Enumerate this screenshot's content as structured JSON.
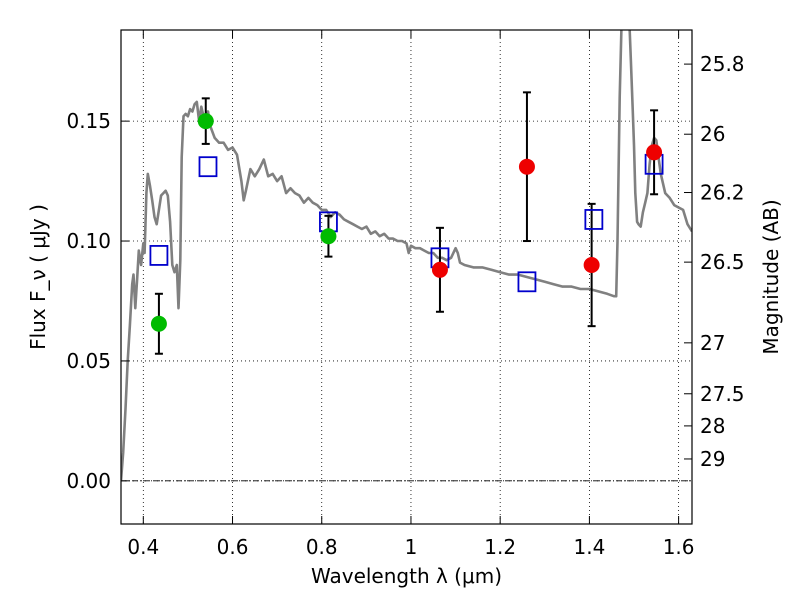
{
  "chart_data": {
    "type": "scatter",
    "xlabel": "Wavelength  λ (μm)",
    "ylabel": "Flux  F_ν  ( μJy )",
    "ylabel_right": "Magnitude (AB)",
    "xlim": [
      0.35,
      1.63
    ],
    "ylim": [
      -0.018,
      0.188
    ],
    "grid": true,
    "x_ticks": [
      0.4,
      0.6,
      0.8,
      1.0,
      1.2,
      1.4,
      1.6
    ],
    "x_tick_labels": [
      "0.4",
      "0.6",
      "0.8",
      "1",
      "1.2",
      "1.4",
      "1.6"
    ],
    "y_ticks": [
      0.0,
      0.05,
      0.1,
      0.15
    ],
    "y_tick_labels": [
      "0.00",
      "0.05",
      "0.10",
      "0.15"
    ],
    "mag_ticks": [
      {
        "mag": 25.8,
        "label": "25.8"
      },
      {
        "mag": 26.0,
        "label": "26"
      },
      {
        "mag": 26.2,
        "label": "26.2"
      },
      {
        "mag": 26.5,
        "label": "26.5"
      },
      {
        "mag": 27.0,
        "label": "27"
      },
      {
        "mag": 27.5,
        "label": "27.5"
      },
      {
        "mag": 28.0,
        "label": "28"
      },
      {
        "mag": 29.0,
        "label": "29"
      }
    ],
    "model_color": "#808080",
    "model_sed": [
      [
        0.35,
        0.0
      ],
      [
        0.355,
        0.012
      ],
      [
        0.36,
        0.03
      ],
      [
        0.365,
        0.05
      ],
      [
        0.37,
        0.065
      ],
      [
        0.375,
        0.082
      ],
      [
        0.378,
        0.086
      ],
      [
        0.382,
        0.072
      ],
      [
        0.386,
        0.084
      ],
      [
        0.39,
        0.096
      ],
      [
        0.395,
        0.09
      ],
      [
        0.4,
        0.099
      ],
      [
        0.403,
        0.095
      ],
      [
        0.407,
        0.12
      ],
      [
        0.41,
        0.128
      ],
      [
        0.415,
        0.123
      ],
      [
        0.42,
        0.117
      ],
      [
        0.425,
        0.11
      ],
      [
        0.43,
        0.107
      ],
      [
        0.435,
        0.113
      ],
      [
        0.44,
        0.119
      ],
      [
        0.445,
        0.12
      ],
      [
        0.45,
        0.121
      ],
      [
        0.455,
        0.119
      ],
      [
        0.46,
        0.108
      ],
      [
        0.465,
        0.09
      ],
      [
        0.47,
        0.087
      ],
      [
        0.475,
        0.09
      ],
      [
        0.479,
        0.072
      ],
      [
        0.483,
        0.092
      ],
      [
        0.486,
        0.135
      ],
      [
        0.49,
        0.152
      ],
      [
        0.495,
        0.153
      ],
      [
        0.5,
        0.152
      ],
      [
        0.505,
        0.155
      ],
      [
        0.51,
        0.154
      ],
      [
        0.515,
        0.157
      ],
      [
        0.52,
        0.158
      ],
      [
        0.525,
        0.15
      ],
      [
        0.53,
        0.156
      ],
      [
        0.535,
        0.152
      ],
      [
        0.54,
        0.15
      ],
      [
        0.545,
        0.154
      ],
      [
        0.55,
        0.148
      ],
      [
        0.56,
        0.143
      ],
      [
        0.57,
        0.141
      ],
      [
        0.58,
        0.141
      ],
      [
        0.59,
        0.138
      ],
      [
        0.6,
        0.139
      ],
      [
        0.61,
        0.136
      ],
      [
        0.62,
        0.125
      ],
      [
        0.625,
        0.117
      ],
      [
        0.63,
        0.121
      ],
      [
        0.64,
        0.13
      ],
      [
        0.65,
        0.127
      ],
      [
        0.66,
        0.13
      ],
      [
        0.67,
        0.134
      ],
      [
        0.68,
        0.127
      ],
      [
        0.69,
        0.128
      ],
      [
        0.7,
        0.125
      ],
      [
        0.71,
        0.127
      ],
      [
        0.72,
        0.12
      ],
      [
        0.73,
        0.122
      ],
      [
        0.74,
        0.12
      ],
      [
        0.75,
        0.119
      ],
      [
        0.76,
        0.116
      ],
      [
        0.77,
        0.118
      ],
      [
        0.78,
        0.116
      ],
      [
        0.79,
        0.115
      ],
      [
        0.8,
        0.113
      ],
      [
        0.81,
        0.113
      ],
      [
        0.82,
        0.11
      ],
      [
        0.83,
        0.112
      ],
      [
        0.84,
        0.111
      ],
      [
        0.85,
        0.109
      ],
      [
        0.86,
        0.108
      ],
      [
        0.87,
        0.107
      ],
      [
        0.88,
        0.106
      ],
      [
        0.89,
        0.105
      ],
      [
        0.9,
        0.106
      ],
      [
        0.91,
        0.103
      ],
      [
        0.92,
        0.104
      ],
      [
        0.93,
        0.102
      ],
      [
        0.94,
        0.103
      ],
      [
        0.95,
        0.101
      ],
      [
        0.96,
        0.101
      ],
      [
        0.97,
        0.1
      ],
      [
        0.98,
        0.1
      ],
      [
        0.99,
        0.099
      ],
      [
        0.995,
        0.095
      ],
      [
        1.0,
        0.098
      ],
      [
        1.01,
        0.097
      ],
      [
        1.02,
        0.097
      ],
      [
        1.03,
        0.096
      ],
      [
        1.04,
        0.095
      ],
      [
        1.05,
        0.095
      ],
      [
        1.06,
        0.093
      ],
      [
        1.07,
        0.093
      ],
      [
        1.08,
        0.092
      ],
      [
        1.09,
        0.093
      ],
      [
        1.1,
        0.097
      ],
      [
        1.105,
        0.095
      ],
      [
        1.11,
        0.091
      ],
      [
        1.12,
        0.09
      ],
      [
        1.14,
        0.089
      ],
      [
        1.16,
        0.089
      ],
      [
        1.18,
        0.088
      ],
      [
        1.2,
        0.087
      ],
      [
        1.22,
        0.086
      ],
      [
        1.24,
        0.086
      ],
      [
        1.26,
        0.085
      ],
      [
        1.28,
        0.084
      ],
      [
        1.3,
        0.083
      ],
      [
        1.32,
        0.082
      ],
      [
        1.34,
        0.081
      ],
      [
        1.36,
        0.081
      ],
      [
        1.38,
        0.08
      ],
      [
        1.4,
        0.08
      ],
      [
        1.42,
        0.079
      ],
      [
        1.44,
        0.078
      ],
      [
        1.455,
        0.077
      ],
      [
        1.46,
        0.077
      ],
      [
        1.463,
        0.1
      ],
      [
        1.468,
        0.16
      ],
      [
        1.472,
        0.19
      ],
      [
        1.48,
        0.19
      ],
      [
        1.49,
        0.19
      ],
      [
        1.493,
        0.175
      ],
      [
        1.497,
        0.155
      ],
      [
        1.5,
        0.14
      ],
      [
        1.503,
        0.12
      ],
      [
        1.507,
        0.108
      ],
      [
        1.51,
        0.107
      ],
      [
        1.515,
        0.106
      ],
      [
        1.52,
        0.112
      ],
      [
        1.525,
        0.116
      ],
      [
        1.53,
        0.12
      ],
      [
        1.535,
        0.132
      ],
      [
        1.54,
        0.14
      ],
      [
        1.545,
        0.143
      ],
      [
        1.55,
        0.142
      ],
      [
        1.555,
        0.135
      ],
      [
        1.56,
        0.128
      ],
      [
        1.57,
        0.12
      ],
      [
        1.58,
        0.118
      ],
      [
        1.59,
        0.115
      ],
      [
        1.6,
        0.114
      ],
      [
        1.61,
        0.113
      ],
      [
        1.62,
        0.107
      ],
      [
        1.63,
        0.104
      ]
    ],
    "series": [
      {
        "name": "model band fluxes",
        "marker": "square",
        "color": "#0000cc",
        "x": [
          0.435,
          0.545,
          0.815,
          1.065,
          1.26,
          1.41,
          1.545
        ],
        "y": [
          0.094,
          0.131,
          0.108,
          0.093,
          0.083,
          0.109,
          0.132
        ]
      },
      {
        "name": "green detections",
        "marker": "circle",
        "color": "#00bb00",
        "x": [
          0.435,
          0.54,
          0.815
        ],
        "y": [
          0.0655,
          0.15,
          0.102
        ],
        "yerr": [
          0.0125,
          0.0095,
          0.0085
        ]
      },
      {
        "name": "red detections",
        "marker": "circle",
        "color": "#ee0000",
        "x": [
          1.065,
          1.26,
          1.405,
          1.545
        ],
        "y": [
          0.088,
          0.131,
          0.09,
          0.137
        ],
        "yerr": [
          0.0175,
          0.031,
          0.0255,
          0.0175
        ]
      }
    ]
  }
}
